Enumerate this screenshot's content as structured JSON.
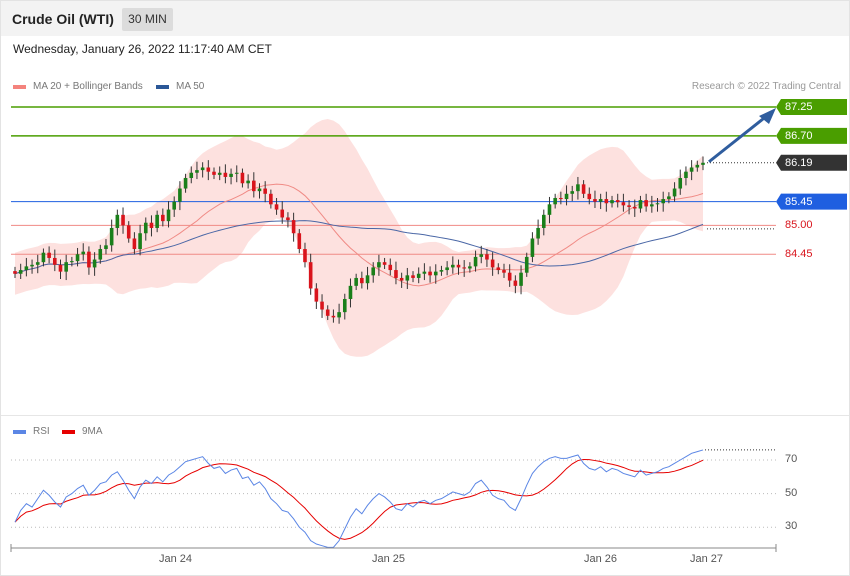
{
  "header": {
    "title": "Crude Oil (WTI)",
    "timeframe": "30 MIN"
  },
  "datetime": "Wednesday, January 26, 2022 11:17:40 AM CET",
  "credit": "Research © 2022 Trading Central",
  "legend_main": [
    {
      "label": "MA 20 + Bollinger Bands",
      "color": "#f4837d"
    },
    {
      "label": "MA 50",
      "color": "#2b5797"
    }
  ],
  "legend_rsi": [
    {
      "label": "RSI",
      "color": "#5b86e5"
    },
    {
      "label": "9MA",
      "color": "#e60000"
    }
  ],
  "colors": {
    "up": "#1a7f1a",
    "down": "#d9141c",
    "bollinger_fill": "#fde1df",
    "ma20": "#f08a85",
    "ma50": "#4a67a6",
    "resistance": "#4a9e00",
    "pivot": "#1f5fe0",
    "support": "#f08a85",
    "current": "#333333",
    "arrow": "#2f5d9e"
  },
  "chart_data": [
    {
      "type": "candlestick",
      "title": "Crude Oil (WTI)",
      "timeframe": "30 MIN",
      "x_ticks": [
        "Jan 24",
        "Jan 25",
        "Jan 26",
        "Jan 27"
      ],
      "ylim": [
        83.5,
        87.6
      ],
      "levels": [
        {
          "label": "87.25",
          "value": 87.25,
          "kind": "resistance"
        },
        {
          "label": "86.70",
          "value": 86.7,
          "kind": "resistance"
        },
        {
          "label": "86.19",
          "value": 86.19,
          "kind": "current"
        },
        {
          "label": "85.45",
          "value": 85.45,
          "kind": "pivot"
        },
        {
          "label": "85.00",
          "value": 85.0,
          "kind": "support"
        },
        {
          "label": "84.45",
          "value": 84.45,
          "kind": "support"
        }
      ],
      "close": [
        84.08,
        84.15,
        84.22,
        84.25,
        84.3,
        84.48,
        84.38,
        84.25,
        84.12,
        84.3,
        84.32,
        84.45,
        84.5,
        84.2,
        84.35,
        84.55,
        84.62,
        84.95,
        85.2,
        85.0,
        84.75,
        84.55,
        84.85,
        85.05,
        84.95,
        85.2,
        85.08,
        85.3,
        85.45,
        85.7,
        85.9,
        86.0,
        86.05,
        86.1,
        86.02,
        85.96,
        86.0,
        85.92,
        85.98,
        86.0,
        85.8,
        85.85,
        85.65,
        85.7,
        85.6,
        85.4,
        85.3,
        85.15,
        85.1,
        84.85,
        84.55,
        84.3,
        83.8,
        83.55,
        83.4,
        83.28,
        83.25,
        83.35,
        83.6,
        83.85,
        84.0,
        83.9,
        84.05,
        84.2,
        84.3,
        84.25,
        84.15,
        84.0,
        83.95,
        84.05,
        84.0,
        84.08,
        84.12,
        84.05,
        84.12,
        84.15,
        84.2,
        84.25,
        84.2,
        84.18,
        84.22,
        84.4,
        84.45,
        84.35,
        84.2,
        84.15,
        84.1,
        83.95,
        83.85,
        84.1,
        84.4,
        84.75,
        84.95,
        85.2,
        85.4,
        85.52,
        85.5,
        85.6,
        85.65,
        85.78,
        85.6,
        85.5,
        85.45,
        85.5,
        85.42,
        85.48,
        85.44,
        85.38,
        85.35,
        85.32,
        85.48,
        85.36,
        85.4,
        85.42,
        85.5,
        85.55,
        85.7,
        85.9,
        86.02,
        86.1,
        86.15,
        86.19
      ],
      "rsi": [
        33,
        40,
        44,
        42,
        47,
        52,
        49,
        45,
        42,
        48,
        50,
        53,
        55,
        49,
        52,
        56,
        57,
        61,
        63,
        58,
        52,
        47,
        54,
        58,
        56,
        60,
        57,
        61,
        63,
        66,
        69,
        70,
        71,
        72,
        68,
        65,
        66,
        62,
        64,
        65,
        59,
        60,
        55,
        57,
        53,
        47,
        44,
        40,
        39,
        35,
        30,
        27,
        22,
        20,
        19,
        18,
        18,
        22,
        29,
        36,
        41,
        38,
        43,
        47,
        50,
        48,
        45,
        41,
        40,
        44,
        42,
        45,
        46,
        44,
        46,
        47,
        49,
        51,
        50,
        49,
        51,
        56,
        58,
        54,
        49,
        47,
        46,
        42,
        40,
        47,
        55,
        62,
        66,
        69,
        71,
        72,
        71,
        71,
        72,
        73,
        68,
        65,
        64,
        66,
        63,
        65,
        64,
        62,
        61,
        60,
        64,
        61,
        62,
        63,
        65,
        66,
        68,
        70,
        72,
        74,
        75,
        76
      ],
      "rsi_ticks": [
        70,
        50,
        30
      ]
    }
  ]
}
